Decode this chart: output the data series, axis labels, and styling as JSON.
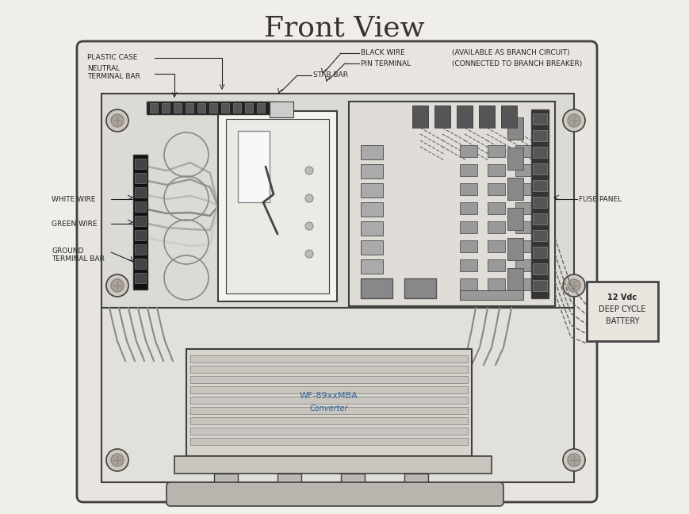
{
  "title": "Front View",
  "title_fontsize": 26,
  "title_color": "#3a3030",
  "bg_color": "#f0eeea",
  "line_color": "#404040",
  "label_color": "#222222",
  "label_fontsize": 6.5,
  "battery_label": [
    "12 Vdc",
    "DEEP CYCLE",
    "BATTERY"
  ],
  "converter_label": [
    "WF-89xxMBA",
    "Converter"
  ]
}
